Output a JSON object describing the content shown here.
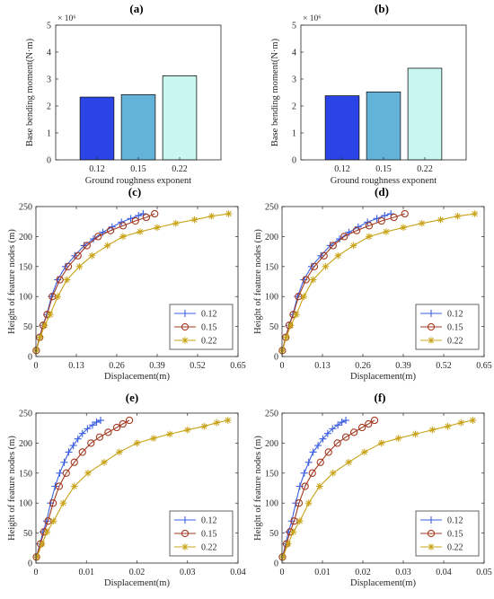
{
  "chart_data": [
    {
      "type": "bar",
      "title": "(a)",
      "categories": [
        "0.12",
        "0.15",
        "0.22"
      ],
      "values": [
        2.33,
        2.42,
        3.12
      ],
      "colors": [
        "#2b44e6",
        "#63b3d9",
        "#c7f7f0"
      ],
      "xlabel": "Ground roughness exponent",
      "ylabel": "Base bending moment(N·m)",
      "yticks": [
        "0",
        "1",
        "2",
        "3",
        "4",
        "5"
      ],
      "ylim": [
        0,
        5
      ],
      "exponent": "× 10⁶",
      "grid": false,
      "legend": "none"
    },
    {
      "type": "bar",
      "title": "(b)",
      "categories": [
        "0.12",
        "0.15",
        "0.22"
      ],
      "values": [
        2.38,
        2.52,
        3.4
      ],
      "colors": [
        "#2b44e6",
        "#63b3d9",
        "#c7f7f0"
      ],
      "xlabel": "Ground roughness exponent",
      "ylabel": "Base bending moment(N·m)",
      "yticks": [
        "0",
        "1",
        "2",
        "3",
        "4",
        "5"
      ],
      "ylim": [
        0,
        5
      ],
      "exponent": "× 10⁶",
      "grid": false,
      "legend": "none"
    },
    {
      "type": "line",
      "title": "(c)",
      "xlabel": "Displacement(m)",
      "ylabel": "Height of feature nodes (m)",
      "xticks": [
        "0",
        "0.13",
        "0.26",
        "0.39",
        "0.52",
        "0.65"
      ],
      "xtick_values": [
        0,
        0.13,
        0.26,
        0.39,
        0.52,
        0.65
      ],
      "xlim": [
        0,
        0.65
      ],
      "yticks": [
        "0",
        "50",
        "100",
        "150",
        "200",
        "250"
      ],
      "ylim": [
        0,
        250
      ],
      "legend": "bottom-right",
      "series": [
        {
          "name": "0.12",
          "marker": "plus",
          "color": "#3b5fe0",
          "x": [
            0.001,
            0.012,
            0.022,
            0.035,
            0.05,
            0.07,
            0.095,
            0.125,
            0.155,
            0.185,
            0.215,
            0.245,
            0.275,
            0.305,
            0.33,
            0.345
          ],
          "y": [
            10,
            32,
            52,
            70,
            100,
            128,
            150,
            168,
            185,
            196,
            207,
            216,
            224,
            230,
            235,
            238
          ]
        },
        {
          "name": "0.15",
          "marker": "circle",
          "color": "#a23b22",
          "x": [
            0.001,
            0.012,
            0.023,
            0.036,
            0.053,
            0.077,
            0.104,
            0.135,
            0.164,
            0.2,
            0.24,
            0.28,
            0.32,
            0.355,
            0.382
          ],
          "y": [
            10,
            32,
            52,
            70,
            100,
            128,
            150,
            168,
            185,
            200,
            210,
            218,
            226,
            232,
            238
          ]
        },
        {
          "name": "0.22",
          "marker": "star",
          "color": "#c8a317",
          "x": [
            0.001,
            0.014,
            0.028,
            0.046,
            0.07,
            0.1,
            0.14,
            0.18,
            0.23,
            0.28,
            0.335,
            0.39,
            0.45,
            0.51,
            0.565,
            0.62
          ],
          "y": [
            10,
            32,
            52,
            70,
            100,
            128,
            150,
            168,
            185,
            200,
            208,
            215,
            222,
            228,
            234,
            238
          ]
        }
      ]
    },
    {
      "type": "line",
      "title": "(d)",
      "xlabel": "Displacement(m)",
      "ylabel": "Height of feature nodes (m)",
      "xticks": [
        "0",
        "0.13",
        "0.26",
        "0.39",
        "0.52",
        "0.65"
      ],
      "xtick_values": [
        0,
        0.13,
        0.26,
        0.39,
        0.52,
        0.65
      ],
      "xlim": [
        0,
        0.65
      ],
      "yticks": [
        "0",
        "50",
        "100",
        "150",
        "200",
        "250"
      ],
      "ylim": [
        0,
        250
      ],
      "legend": "bottom-right",
      "series": [
        {
          "name": "0.12",
          "marker": "plus",
          "color": "#3b5fe0",
          "x": [
            0.001,
            0.012,
            0.022,
            0.035,
            0.05,
            0.07,
            0.095,
            0.125,
            0.155,
            0.185,
            0.215,
            0.245,
            0.275,
            0.305,
            0.33,
            0.35
          ],
          "y": [
            10,
            32,
            52,
            70,
            100,
            128,
            150,
            168,
            185,
            196,
            207,
            216,
            224,
            230,
            235,
            238
          ]
        },
        {
          "name": "0.15",
          "marker": "circle",
          "color": "#a23b22",
          "x": [
            0.001,
            0.012,
            0.023,
            0.036,
            0.053,
            0.077,
            0.104,
            0.135,
            0.164,
            0.2,
            0.24,
            0.28,
            0.32,
            0.36,
            0.395
          ],
          "y": [
            10,
            32,
            52,
            70,
            100,
            128,
            150,
            168,
            185,
            200,
            210,
            218,
            226,
            232,
            238
          ]
        },
        {
          "name": "0.22",
          "marker": "star",
          "color": "#c8a317",
          "x": [
            0.001,
            0.014,
            0.028,
            0.046,
            0.07,
            0.1,
            0.14,
            0.18,
            0.23,
            0.28,
            0.335,
            0.39,
            0.45,
            0.51,
            0.565,
            0.62
          ],
          "y": [
            10,
            32,
            52,
            70,
            100,
            128,
            150,
            168,
            185,
            200,
            208,
            215,
            222,
            228,
            234,
            238
          ]
        }
      ]
    },
    {
      "type": "line",
      "title": "(e)",
      "xlabel": "Displacement(m)",
      "ylabel": "Height of feature nodes (m)",
      "xticks": [
        "0",
        "0.01",
        "0.02",
        "0.03",
        "0.04"
      ],
      "xtick_values": [
        0,
        0.01,
        0.02,
        0.03,
        0.04
      ],
      "xlim": [
        0,
        0.04
      ],
      "yticks": [
        "0",
        "50",
        "100",
        "150",
        "200",
        "250"
      ],
      "ylim": [
        0,
        250
      ],
      "legend": "bottom-right",
      "series": [
        {
          "name": "0.12",
          "marker": "plus",
          "color": "#3b5fe0",
          "x": [
            0.0001,
            0.0008,
            0.0014,
            0.0021,
            0.0029,
            0.0038,
            0.0047,
            0.0056,
            0.0065,
            0.0074,
            0.0083,
            0.0092,
            0.0102,
            0.0112,
            0.012,
            0.0128
          ],
          "y": [
            10,
            32,
            52,
            70,
            100,
            128,
            150,
            168,
            185,
            196,
            207,
            216,
            224,
            230,
            235,
            238
          ]
        },
        {
          "name": "0.15",
          "marker": "circle",
          "color": "#a23b22",
          "x": [
            0.0001,
            0.0009,
            0.0016,
            0.0024,
            0.0034,
            0.0046,
            0.006,
            0.0076,
            0.0092,
            0.0109,
            0.0126,
            0.0143,
            0.016,
            0.0172,
            0.0185
          ],
          "y": [
            10,
            32,
            52,
            70,
            100,
            128,
            150,
            168,
            185,
            200,
            210,
            218,
            226,
            232,
            238
          ]
        },
        {
          "name": "0.22",
          "marker": "star",
          "color": "#c8a317",
          "x": [
            0.0002,
            0.0012,
            0.0022,
            0.0035,
            0.0054,
            0.0076,
            0.0103,
            0.0135,
            0.0165,
            0.02,
            0.0233,
            0.0265,
            0.03,
            0.0333,
            0.0358,
            0.038
          ],
          "y": [
            10,
            32,
            52,
            70,
            100,
            128,
            150,
            168,
            185,
            200,
            208,
            215,
            222,
            228,
            234,
            238
          ]
        }
      ]
    },
    {
      "type": "line",
      "title": "(f)",
      "xlabel": "Displacement(m)",
      "ylabel": "Height of feature nodes (m)",
      "xticks": [
        "0",
        "0.01",
        "0.02",
        "0.03",
        "0.04",
        "0.05"
      ],
      "xtick_values": [
        0,
        0.01,
        0.02,
        0.03,
        0.04,
        0.05
      ],
      "xlim": [
        0,
        0.05
      ],
      "yticks": [
        "0",
        "50",
        "100",
        "150",
        "200",
        "250"
      ],
      "ylim": [
        0,
        250
      ],
      "legend": "bottom-right",
      "series": [
        {
          "name": "0.12",
          "marker": "plus",
          "color": "#3b5fe0",
          "x": [
            0.0001,
            0.0009,
            0.0016,
            0.0024,
            0.0034,
            0.0044,
            0.0055,
            0.0066,
            0.0077,
            0.0089,
            0.0101,
            0.0113,
            0.0125,
            0.0138,
            0.0148,
            0.0158
          ],
          "y": [
            10,
            32,
            52,
            70,
            100,
            128,
            150,
            168,
            185,
            196,
            207,
            216,
            224,
            230,
            235,
            238
          ]
        },
        {
          "name": "0.15",
          "marker": "circle",
          "color": "#a23b22",
          "x": [
            0.0001,
            0.0011,
            0.002,
            0.003,
            0.0042,
            0.0057,
            0.0075,
            0.0095,
            0.0115,
            0.0137,
            0.0158,
            0.0178,
            0.0198,
            0.0214,
            0.0229
          ],
          "y": [
            10,
            32,
            52,
            70,
            100,
            128,
            150,
            168,
            185,
            200,
            210,
            218,
            226,
            232,
            238
          ]
        },
        {
          "name": "0.22",
          "marker": "star",
          "color": "#c8a317",
          "x": [
            0.0002,
            0.0015,
            0.0028,
            0.0044,
            0.0066,
            0.0093,
            0.0126,
            0.0165,
            0.0204,
            0.0246,
            0.0288,
            0.033,
            0.0372,
            0.041,
            0.0443,
            0.0472
          ],
          "y": [
            10,
            32,
            52,
            70,
            100,
            128,
            150,
            168,
            185,
            200,
            208,
            215,
            222,
            228,
            234,
            238
          ]
        }
      ]
    }
  ]
}
